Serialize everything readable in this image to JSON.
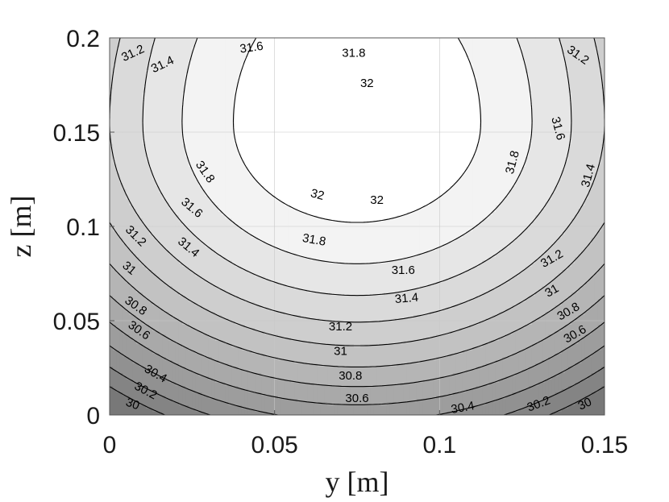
{
  "chart_data": {
    "type": "contour",
    "xlabel": "y [m]",
    "ylabel": "z [m]",
    "xlim": [
      0,
      0.15
    ],
    "ylim": [
      0,
      0.2
    ],
    "xticks": [
      0,
      0.05,
      0.1,
      0.15
    ],
    "xtick_labels": [
      "0",
      "0.05",
      "0.1",
      "0.15"
    ],
    "yticks": [
      0,
      0.05,
      0.1,
      0.15,
      0.2
    ],
    "ytick_labels": [
      "0",
      "0.05",
      "0.1",
      "0.15",
      "0.2"
    ],
    "grid": true,
    "colormap": "gray",
    "levels": [
      30,
      30.2,
      30.4,
      30.6,
      30.8,
      31,
      31.2,
      31.4,
      31.6,
      31.8,
      32
    ],
    "field_model": {
      "max_value": 32.2,
      "center": [
        0.075,
        0.155
      ],
      "decay_y": 3.2,
      "decay_z_below": 1.3,
      "decay_z_above": 0.6
    },
    "contour_labels": [
      {
        "text": "31.2",
        "y": 0.007,
        "z": 0.192,
        "angle": -25
      },
      {
        "text": "31.4",
        "y": 0.016,
        "z": 0.186,
        "angle": -25
      },
      {
        "text": "31.6",
        "y": 0.043,
        "z": 0.195,
        "angle": -8
      },
      {
        "text": "31.8",
        "y": 0.074,
        "z": 0.192,
        "angle": 0
      },
      {
        "text": "32",
        "y": 0.078,
        "z": 0.176,
        "angle": 0
      },
      {
        "text": "31.2",
        "y": 0.142,
        "z": 0.191,
        "angle": 35
      },
      {
        "text": "31.6",
        "y": 0.136,
        "z": 0.152,
        "angle": 75
      },
      {
        "text": "31.8",
        "y": 0.122,
        "z": 0.134,
        "angle": -75
      },
      {
        "text": "31.4",
        "y": 0.145,
        "z": 0.127,
        "angle": -75
      },
      {
        "text": "31.8",
        "y": 0.029,
        "z": 0.129,
        "angle": 55
      },
      {
        "text": "32",
        "y": 0.063,
        "z": 0.117,
        "angle": 15
      },
      {
        "text": "32",
        "y": 0.081,
        "z": 0.114,
        "angle": 0
      },
      {
        "text": "31.6",
        "y": 0.025,
        "z": 0.11,
        "angle": 40
      },
      {
        "text": "31.2",
        "y": 0.008,
        "z": 0.095,
        "angle": 45
      },
      {
        "text": "31.4",
        "y": 0.024,
        "z": 0.089,
        "angle": 40
      },
      {
        "text": "31.8",
        "y": 0.062,
        "z": 0.093,
        "angle": 10
      },
      {
        "text": "31.6",
        "y": 0.089,
        "z": 0.077,
        "angle": 0
      },
      {
        "text": "31.2",
        "y": 0.134,
        "z": 0.083,
        "angle": -30
      },
      {
        "text": "31",
        "y": 0.006,
        "z": 0.078,
        "angle": 40
      },
      {
        "text": "31.4",
        "y": 0.09,
        "z": 0.062,
        "angle": -5
      },
      {
        "text": "31",
        "y": 0.134,
        "z": 0.066,
        "angle": -30
      },
      {
        "text": "30.8",
        "y": 0.008,
        "z": 0.058,
        "angle": 35
      },
      {
        "text": "30.8",
        "y": 0.139,
        "z": 0.055,
        "angle": -30
      },
      {
        "text": "30.6",
        "y": 0.009,
        "z": 0.045,
        "angle": 35
      },
      {
        "text": "30.6",
        "y": 0.141,
        "z": 0.043,
        "angle": -30
      },
      {
        "text": "31.2",
        "y": 0.07,
        "z": 0.047,
        "angle": 0
      },
      {
        "text": "31",
        "y": 0.07,
        "z": 0.034,
        "angle": 0
      },
      {
        "text": "30.4",
        "y": 0.014,
        "z": 0.022,
        "angle": 30
      },
      {
        "text": "30.2",
        "y": 0.011,
        "z": 0.013,
        "angle": 28
      },
      {
        "text": "30",
        "y": 0.007,
        "z": 0.006,
        "angle": 20
      },
      {
        "text": "30.8",
        "y": 0.073,
        "z": 0.021,
        "angle": 0
      },
      {
        "text": "30.6",
        "y": 0.075,
        "z": 0.009,
        "angle": 0
      },
      {
        "text": "30.4",
        "y": 0.107,
        "z": 0.004,
        "angle": -10
      },
      {
        "text": "30.2",
        "y": 0.13,
        "z": 0.006,
        "angle": -20
      },
      {
        "text": "30",
        "y": 0.144,
        "z": 0.006,
        "angle": -25
      }
    ]
  }
}
